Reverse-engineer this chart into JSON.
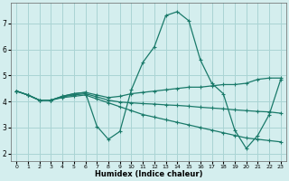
{
  "xlabel": "Humidex (Indice chaleur)",
  "background_color": "#d4eeee",
  "grid_color": "#aad4d4",
  "line_color": "#1a7a6a",
  "xlim": [
    -0.5,
    23.5
  ],
  "ylim": [
    1.7,
    7.8
  ],
  "xticks": [
    0,
    1,
    2,
    3,
    4,
    5,
    6,
    7,
    8,
    9,
    10,
    11,
    12,
    13,
    14,
    15,
    16,
    17,
    18,
    19,
    20,
    21,
    22,
    23
  ],
  "yticks": [
    2,
    3,
    4,
    5,
    6,
    7
  ],
  "line1_x": [
    0,
    1,
    2,
    3,
    4,
    5,
    6,
    7,
    8,
    9,
    10,
    11,
    12,
    13,
    14,
    15,
    16,
    17,
    18,
    19,
    20,
    21,
    22,
    23
  ],
  "line1_y": [
    4.4,
    4.25,
    4.05,
    4.05,
    4.2,
    4.3,
    4.35,
    3.05,
    2.55,
    2.85,
    4.45,
    5.5,
    6.1,
    7.3,
    7.45,
    7.1,
    5.6,
    4.7,
    4.3,
    2.9,
    2.2,
    2.7,
    3.5,
    4.85
  ],
  "line2_x": [
    0,
    1,
    2,
    3,
    4,
    5,
    6,
    7,
    8,
    9,
    10,
    11,
    12,
    13,
    14,
    15,
    16,
    17,
    18,
    19,
    20,
    21,
    22,
    23
  ],
  "line2_y": [
    4.4,
    4.25,
    4.05,
    4.05,
    4.2,
    4.3,
    4.35,
    4.25,
    4.15,
    4.2,
    4.3,
    4.35,
    4.4,
    4.45,
    4.5,
    4.55,
    4.55,
    4.6,
    4.65,
    4.65,
    4.7,
    4.85,
    4.9,
    4.9
  ],
  "line3_x": [
    0,
    1,
    2,
    3,
    4,
    5,
    6,
    7,
    8,
    9,
    10,
    11,
    12,
    13,
    14,
    15,
    16,
    17,
    18,
    19,
    20,
    21,
    22,
    23
  ],
  "line3_y": [
    4.4,
    4.25,
    4.05,
    4.05,
    4.15,
    4.2,
    4.25,
    4.1,
    3.95,
    3.8,
    3.65,
    3.5,
    3.4,
    3.3,
    3.2,
    3.1,
    3.0,
    2.9,
    2.8,
    2.7,
    2.6,
    2.55,
    2.5,
    2.45
  ],
  "line4_x": [
    0,
    1,
    2,
    3,
    4,
    5,
    6,
    7,
    8,
    9,
    10,
    11,
    12,
    13,
    14,
    15,
    16,
    17,
    18,
    19,
    20,
    21,
    22,
    23
  ],
  "line4_y": [
    4.4,
    4.25,
    4.05,
    4.05,
    4.18,
    4.25,
    4.3,
    4.18,
    4.05,
    3.98,
    3.95,
    3.92,
    3.9,
    3.87,
    3.85,
    3.82,
    3.78,
    3.75,
    3.72,
    3.68,
    3.65,
    3.62,
    3.6,
    3.55
  ]
}
